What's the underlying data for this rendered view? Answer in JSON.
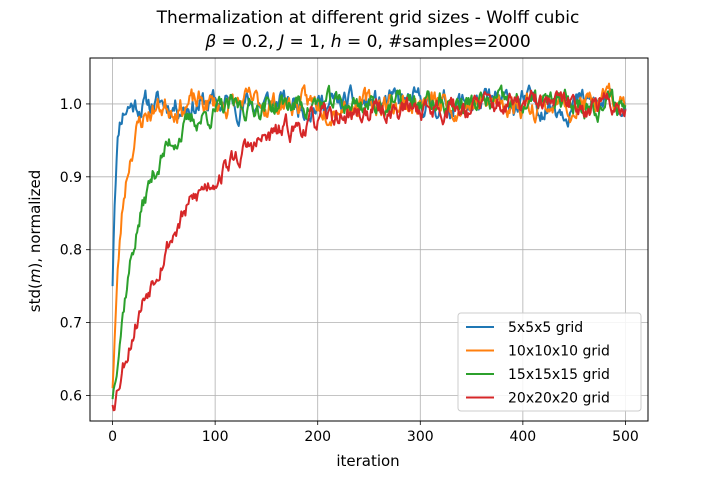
{
  "chart_data": {
    "type": "line",
    "title_line1": "Thermalization at different grid sizes - Wolff cubic",
    "title_line2_parts": [
      "β",
      " = 0.2, ",
      "J",
      " = 1, ",
      "h",
      " = 0, #samples=2000"
    ],
    "xlabel": "iteration",
    "ylabel_parts": [
      "std(",
      "m",
      "), normalized"
    ],
    "xlim": [
      -22,
      522
    ],
    "ylim": [
      0.565,
      1.063
    ],
    "xticks": [
      0,
      100,
      200,
      300,
      400,
      500
    ],
    "yticks": [
      0.6,
      0.7,
      0.8,
      0.9,
      1.0
    ],
    "ytick_labels": [
      "0.6",
      "0.7",
      "0.8",
      "0.9",
      "1.0"
    ],
    "grid": true,
    "legend_position": "lower-right",
    "series": [
      {
        "name": "5x5x5 grid",
        "color": "#1f77b4",
        "start": 0.75,
        "tau": 3,
        "seed": 11,
        "noise": 0.011
      },
      {
        "name": "10x10x10 grid",
        "color": "#ff7f0e",
        "start": 0.61,
        "tau": 10,
        "seed": 23,
        "noise": 0.011
      },
      {
        "name": "15x15x15 grid",
        "color": "#2ca02c",
        "start": 0.595,
        "tau": 28,
        "seed": 37,
        "noise": 0.01
      },
      {
        "name": "20x20x20 grid",
        "color": "#d62728",
        "start": 0.587,
        "tau": 70,
        "seed": 53,
        "noise": 0.01
      }
    ]
  }
}
